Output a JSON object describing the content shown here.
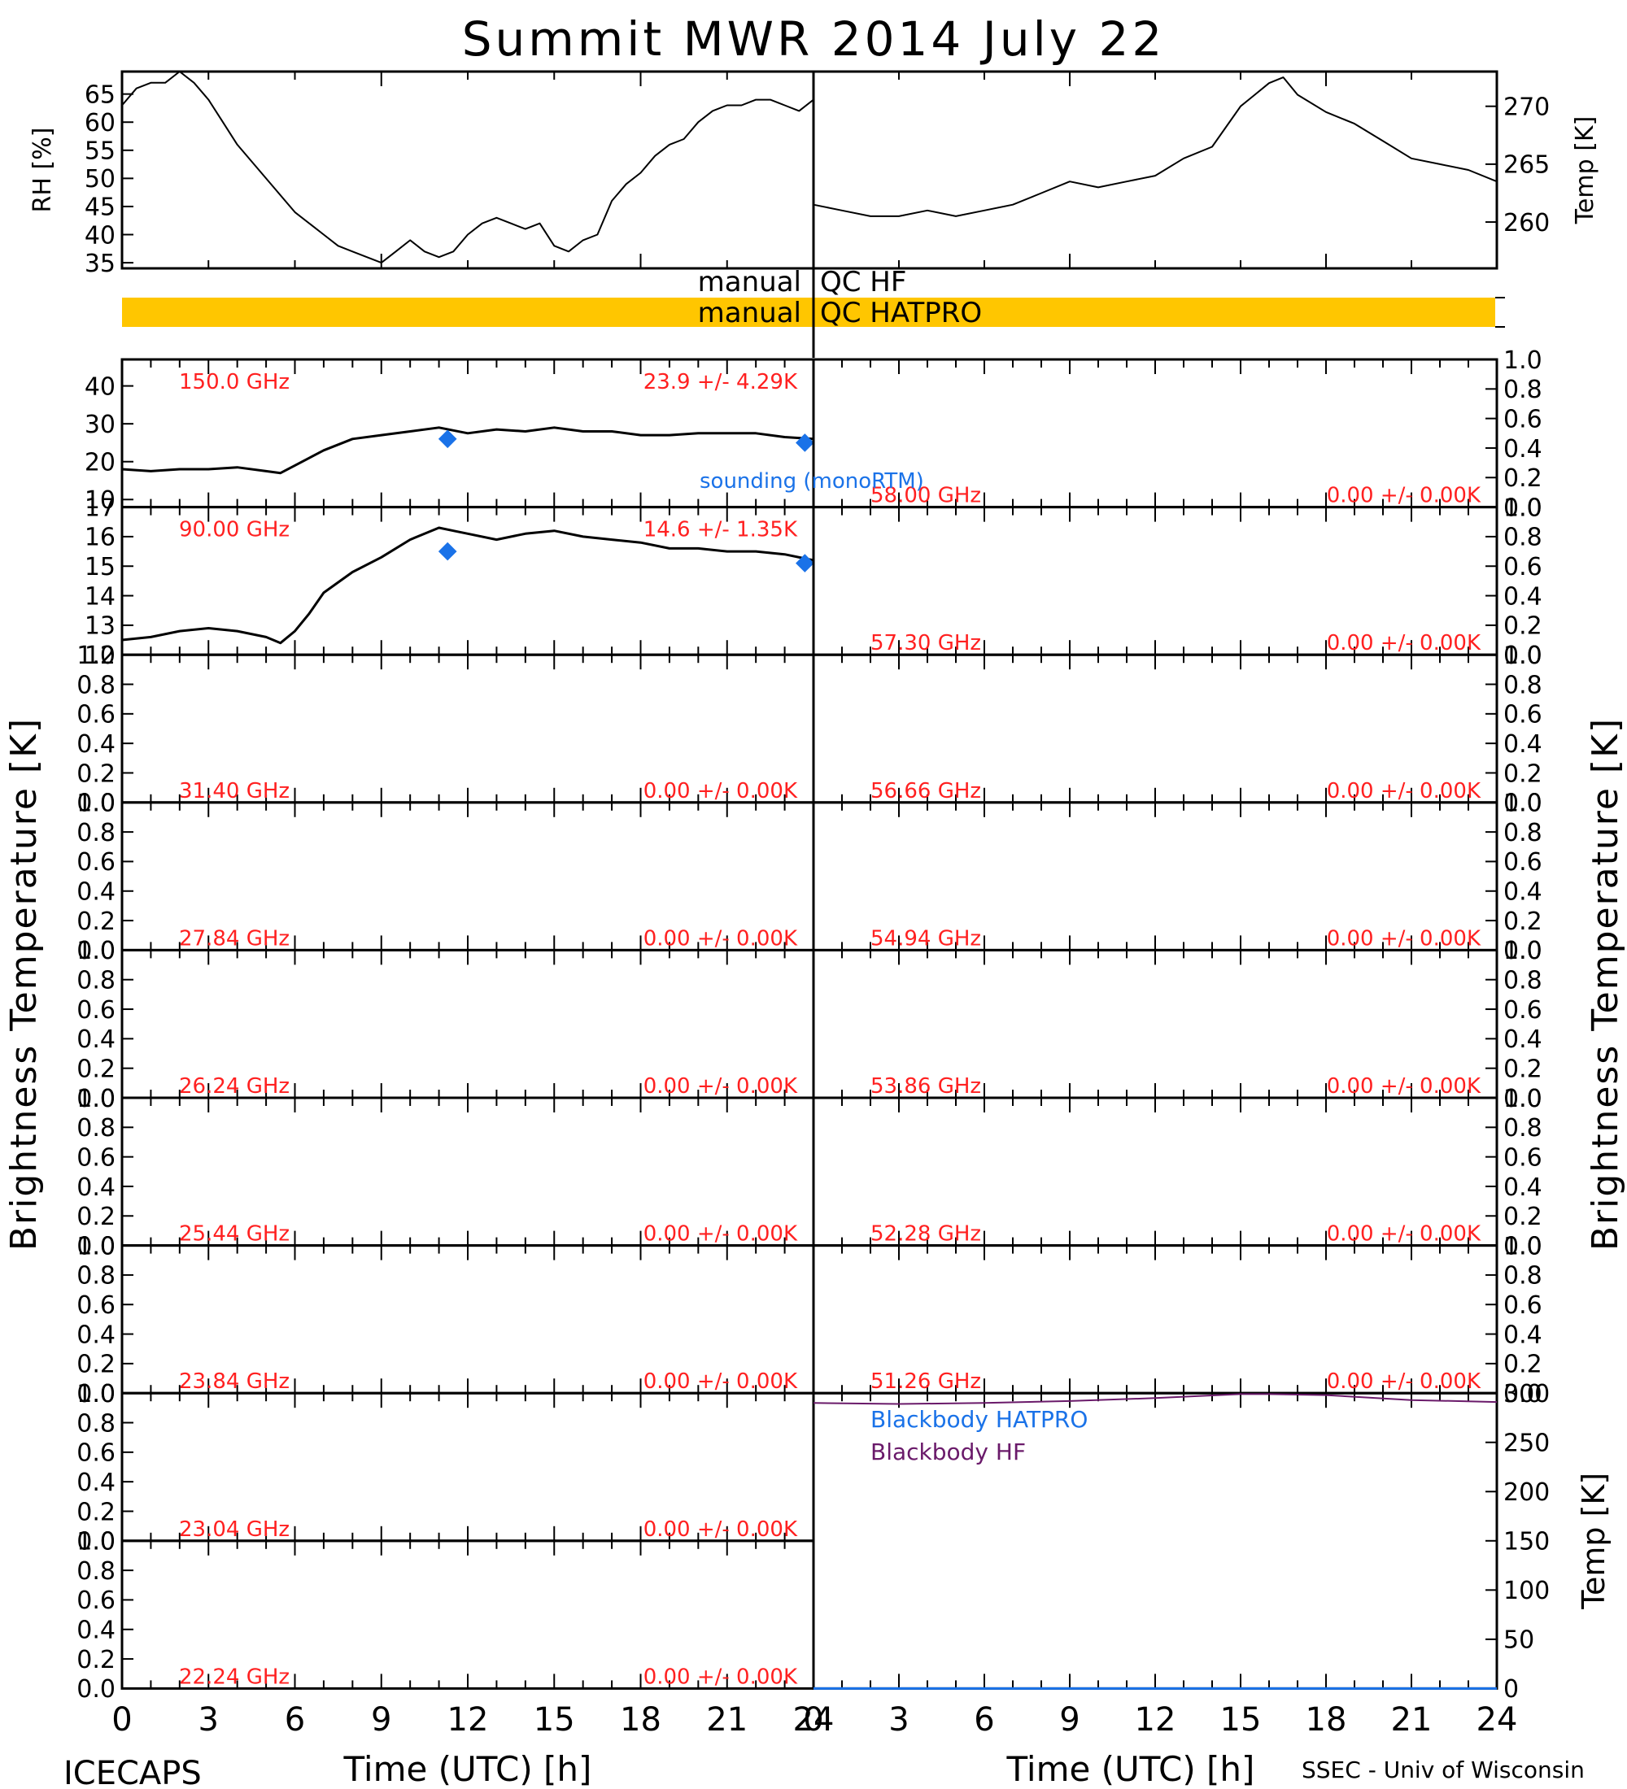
{
  "title": "Summit MWR 2014 July 22",
  "footer": {
    "left": "ICECAPS",
    "right": "SSEC - Univ of Wisconsin"
  },
  "xaxis": {
    "label": "Time (UTC) [h]",
    "ticks": [
      "0",
      "3",
      "6",
      "9",
      "12",
      "15",
      "18",
      "21",
      "24"
    ]
  },
  "yaxis_left_label": "Brightness Temperature [K]",
  "yaxis_right_label": "Brightness Temperature [K]",
  "qc": {
    "hf": {
      "left": "manual",
      "right": "QC HF"
    },
    "hatpro": {
      "left": "manual",
      "right": "QC HATPRO",
      "bar_color": "#ffc600"
    }
  },
  "sounding_label": "sounding (monoRTM)",
  "colors": {
    "label_red": "#ff2020",
    "sounding_blue": "#1a72e8",
    "bb_purple": "#6a1a6a",
    "trace": "#000000"
  },
  "chart_data": [
    {
      "type": "line",
      "id": "rh",
      "ylabel": "RH [%]",
      "yticks": [
        35,
        40,
        45,
        50,
        55,
        60,
        65
      ],
      "ylim": [
        34,
        69
      ],
      "xlim": [
        0,
        24
      ],
      "x": [
        0,
        0.5,
        1,
        1.5,
        2,
        2.5,
        3,
        3.5,
        4,
        5,
        6,
        7,
        7.5,
        8,
        8.5,
        9,
        9.5,
        10,
        10.5,
        11,
        11.5,
        12,
        12.5,
        13,
        13.5,
        14,
        14.5,
        15,
        15.5,
        16,
        16.5,
        17,
        17.5,
        18,
        18.5,
        19,
        19.5,
        20,
        20.5,
        21,
        21.5,
        22,
        22.5,
        23,
        23.5,
        24
      ],
      "y": [
        63,
        66,
        67,
        67,
        69,
        67,
        64,
        60,
        56,
        50,
        44,
        40,
        38,
        37,
        36,
        35,
        37,
        39,
        37,
        36,
        37,
        40,
        42,
        43,
        42,
        41,
        42,
        38,
        37,
        39,
        40,
        46,
        49,
        51,
        54,
        56,
        57,
        60,
        62,
        63,
        63,
        64,
        64,
        63,
        62,
        64
      ]
    },
    {
      "type": "line",
      "id": "temp",
      "ylabel": "Temp [K]",
      "yticks": [
        260,
        265,
        270
      ],
      "ylim": [
        256,
        273
      ],
      "xlim": [
        0,
        24
      ],
      "x": [
        0,
        1,
        2,
        3,
        4,
        5,
        6,
        7,
        8,
        9,
        10,
        11,
        12,
        13,
        14,
        15,
        15.5,
        16,
        16.5,
        17,
        18,
        19,
        20,
        21,
        22,
        23,
        24
      ],
      "y": [
        261.5,
        261,
        260.5,
        260.5,
        261,
        260.5,
        261,
        261.5,
        262.5,
        263.5,
        263,
        263.5,
        264,
        265.5,
        266.5,
        270,
        271,
        272,
        272.5,
        271,
        269.5,
        268.5,
        267,
        265.5,
        265,
        264.5,
        263.5
      ]
    },
    {
      "type": "line",
      "id": "tb-150",
      "freq": "150.0 GHz",
      "stats": "23.9 +/-  4.29K",
      "yticks": [
        "10",
        "20",
        "30",
        "40"
      ],
      "ylim": [
        8,
        47
      ],
      "xlim": [
        0,
        24
      ],
      "x": [
        0,
        1,
        2,
        3,
        4,
        5,
        5.5,
        6,
        7,
        8,
        9,
        10,
        11,
        12,
        13,
        14,
        15,
        16,
        17,
        18,
        19,
        20,
        21,
        22,
        23,
        24
      ],
      "y": [
        18,
        17.5,
        18,
        18,
        18.5,
        17.5,
        17,
        19,
        23,
        26,
        27,
        28,
        29,
        27.5,
        28.5,
        28,
        29,
        28,
        28,
        27,
        27,
        27.5,
        27.5,
        27.5,
        26.5,
        26
      ],
      "sounding": {
        "x": [
          11.3,
          23.7
        ],
        "y": [
          26,
          25
        ]
      }
    },
    {
      "type": "line",
      "id": "tb-90",
      "freq": "90.00 GHz",
      "stats": "14.6 +/-  1.35K",
      "yticks": [
        "12",
        "13",
        "14",
        "15",
        "16",
        "17"
      ],
      "ylim": [
        12,
        17
      ],
      "xlim": [
        0,
        24
      ],
      "x": [
        0,
        1,
        2,
        3,
        4,
        5,
        5.5,
        6,
        6.5,
        7,
        8,
        9,
        10,
        11,
        11.5,
        12,
        13,
        14,
        15,
        16,
        17,
        18,
        19,
        20,
        21,
        22,
        23,
        24
      ],
      "y": [
        12.5,
        12.6,
        12.8,
        12.9,
        12.8,
        12.6,
        12.4,
        12.8,
        13.4,
        14.1,
        14.8,
        15.3,
        15.9,
        16.3,
        16.2,
        16.1,
        15.9,
        16.1,
        16.2,
        16.0,
        15.9,
        15.8,
        15.6,
        15.6,
        15.5,
        15.5,
        15.4,
        15.2
      ],
      "sounding": {
        "x": [
          11.3,
          23.7
        ],
        "y": [
          15.5,
          15.1
        ]
      }
    },
    {
      "type": "line",
      "id": "tb-31",
      "freq": "31.40 GHz",
      "stats": "0.00 +/-  0.00K",
      "yticks": [
        "0.0",
        "0.2",
        "0.4",
        "0.6",
        "0.8",
        "1.0"
      ],
      "ylim": [
        0,
        1
      ]
    },
    {
      "type": "line",
      "id": "tb-27",
      "freq": "27.84 GHz",
      "stats": "0.00 +/-  0.00K",
      "yticks": [
        "0.0",
        "0.2",
        "0.4",
        "0.6",
        "0.8",
        "1.0"
      ],
      "ylim": [
        0,
        1
      ]
    },
    {
      "type": "line",
      "id": "tb-26",
      "freq": "26.24 GHz",
      "stats": "0.00 +/-  0.00K",
      "yticks": [
        "0.0",
        "0.2",
        "0.4",
        "0.6",
        "0.8",
        "1.0"
      ],
      "ylim": [
        0,
        1
      ]
    },
    {
      "type": "line",
      "id": "tb-25",
      "freq": "25.44 GHz",
      "stats": "0.00 +/-  0.00K",
      "yticks": [
        "0.0",
        "0.2",
        "0.4",
        "0.6",
        "0.8",
        "1.0"
      ],
      "ylim": [
        0,
        1
      ]
    },
    {
      "type": "line",
      "id": "tb-23a",
      "freq": "23.84 GHz",
      "stats": "0.00 +/-  0.00K",
      "yticks": [
        "0.0",
        "0.2",
        "0.4",
        "0.6",
        "0.8",
        "1.0"
      ],
      "ylim": [
        0,
        1
      ]
    },
    {
      "type": "line",
      "id": "tb-23b",
      "freq": "23.04 GHz",
      "stats": "0.00 +/-  0.00K",
      "yticks": [
        "0.0",
        "0.2",
        "0.4",
        "0.6",
        "0.8",
        "1.0"
      ],
      "ylim": [
        0,
        1
      ]
    },
    {
      "type": "line",
      "id": "tb-22",
      "freq": "22.24 GHz",
      "stats": "0.00 +/-  0.00K",
      "yticks": [
        "0.0",
        "0.2",
        "0.4",
        "0.6",
        "0.8",
        "1.0"
      ],
      "ylim": [
        0,
        1
      ]
    },
    {
      "type": "line",
      "id": "tb-58",
      "freq": "58.00 GHz",
      "stats": "0.00 +/-  0.00K",
      "yticks": [
        "0.0",
        "0.2",
        "0.4",
        "0.6",
        "0.8",
        "1.0"
      ],
      "ylim": [
        0,
        1
      ]
    },
    {
      "type": "line",
      "id": "tb-57",
      "freq": "57.30 GHz",
      "stats": "0.00 +/-  0.00K",
      "yticks": [
        "0.0",
        "0.2",
        "0.4",
        "0.6",
        "0.8",
        "1.0"
      ],
      "ylim": [
        0,
        1
      ]
    },
    {
      "type": "line",
      "id": "tb-56",
      "freq": "56.66 GHz",
      "stats": "0.00 +/-  0.00K",
      "yticks": [
        "0.0",
        "0.2",
        "0.4",
        "0.6",
        "0.8",
        "1.0"
      ],
      "ylim": [
        0,
        1
      ]
    },
    {
      "type": "line",
      "id": "tb-54",
      "freq": "54.94 GHz",
      "stats": "0.00 +/-  0.00K",
      "yticks": [
        "0.0",
        "0.2",
        "0.4",
        "0.6",
        "0.8",
        "1.0"
      ],
      "ylim": [
        0,
        1
      ]
    },
    {
      "type": "line",
      "id": "tb-53",
      "freq": "53.86 GHz",
      "stats": "0.00 +/-  0.00K",
      "yticks": [
        "0.0",
        "0.2",
        "0.4",
        "0.6",
        "0.8",
        "1.0"
      ],
      "ylim": [
        0,
        1
      ]
    },
    {
      "type": "line",
      "id": "tb-52",
      "freq": "52.28 GHz",
      "stats": "0.00 +/-  0.00K",
      "yticks": [
        "0.0",
        "0.2",
        "0.4",
        "0.6",
        "0.8",
        "1.0"
      ],
      "ylim": [
        0,
        1
      ]
    },
    {
      "type": "line",
      "id": "tb-51",
      "freq": "51.26 GHz",
      "stats": "0.00 +/-  0.00K",
      "yticks": [
        "0.0",
        "0.2",
        "0.4",
        "0.6",
        "0.8",
        "1.0"
      ],
      "ylim": [
        0,
        1
      ]
    },
    {
      "type": "line",
      "id": "blackbody",
      "ylabel": "Temp [K]",
      "yticks": [
        "0",
        "50",
        "100",
        "150",
        "200",
        "250",
        "300"
      ],
      "ylim": [
        0,
        300
      ],
      "xlim": [
        0,
        24
      ],
      "series": [
        {
          "name": "Blackbody HATPRO",
          "x": [
            0,
            24
          ],
          "y": [
            0,
            0
          ]
        },
        {
          "name": "Blackbody HF",
          "x": [
            0,
            3,
            6,
            9,
            12,
            15,
            16,
            18,
            21,
            24
          ],
          "y": [
            290,
            289,
            290,
            292,
            295,
            299,
            299,
            298,
            293,
            291
          ]
        }
      ]
    }
  ]
}
